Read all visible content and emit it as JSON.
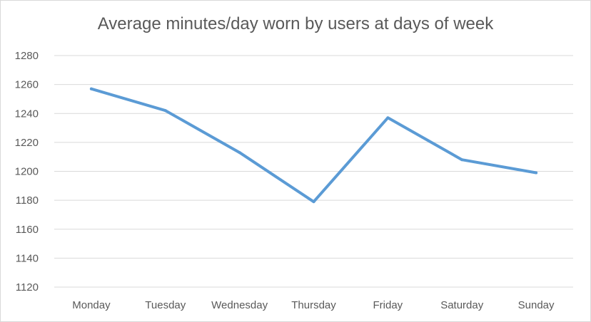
{
  "chart_data": {
    "type": "line",
    "title": "Average minutes/day worn by users at days of week",
    "xlabel": "",
    "ylabel": "",
    "categories": [
      "Monday",
      "Tuesday",
      "Wednesday",
      "Thursday",
      "Friday",
      "Saturday",
      "Sunday"
    ],
    "series": [
      {
        "values": [
          1257,
          1242,
          1213,
          1179,
          1237,
          1208,
          1199
        ]
      }
    ],
    "ylim": [
      1120,
      1280
    ],
    "yticks": [
      1120,
      1140,
      1160,
      1180,
      1200,
      1220,
      1240,
      1260,
      1280
    ],
    "grid": true,
    "legend": "none",
    "colors": {
      "line": "#5b9bd5",
      "grid": "#d9d9d9",
      "text": "#595959"
    }
  }
}
